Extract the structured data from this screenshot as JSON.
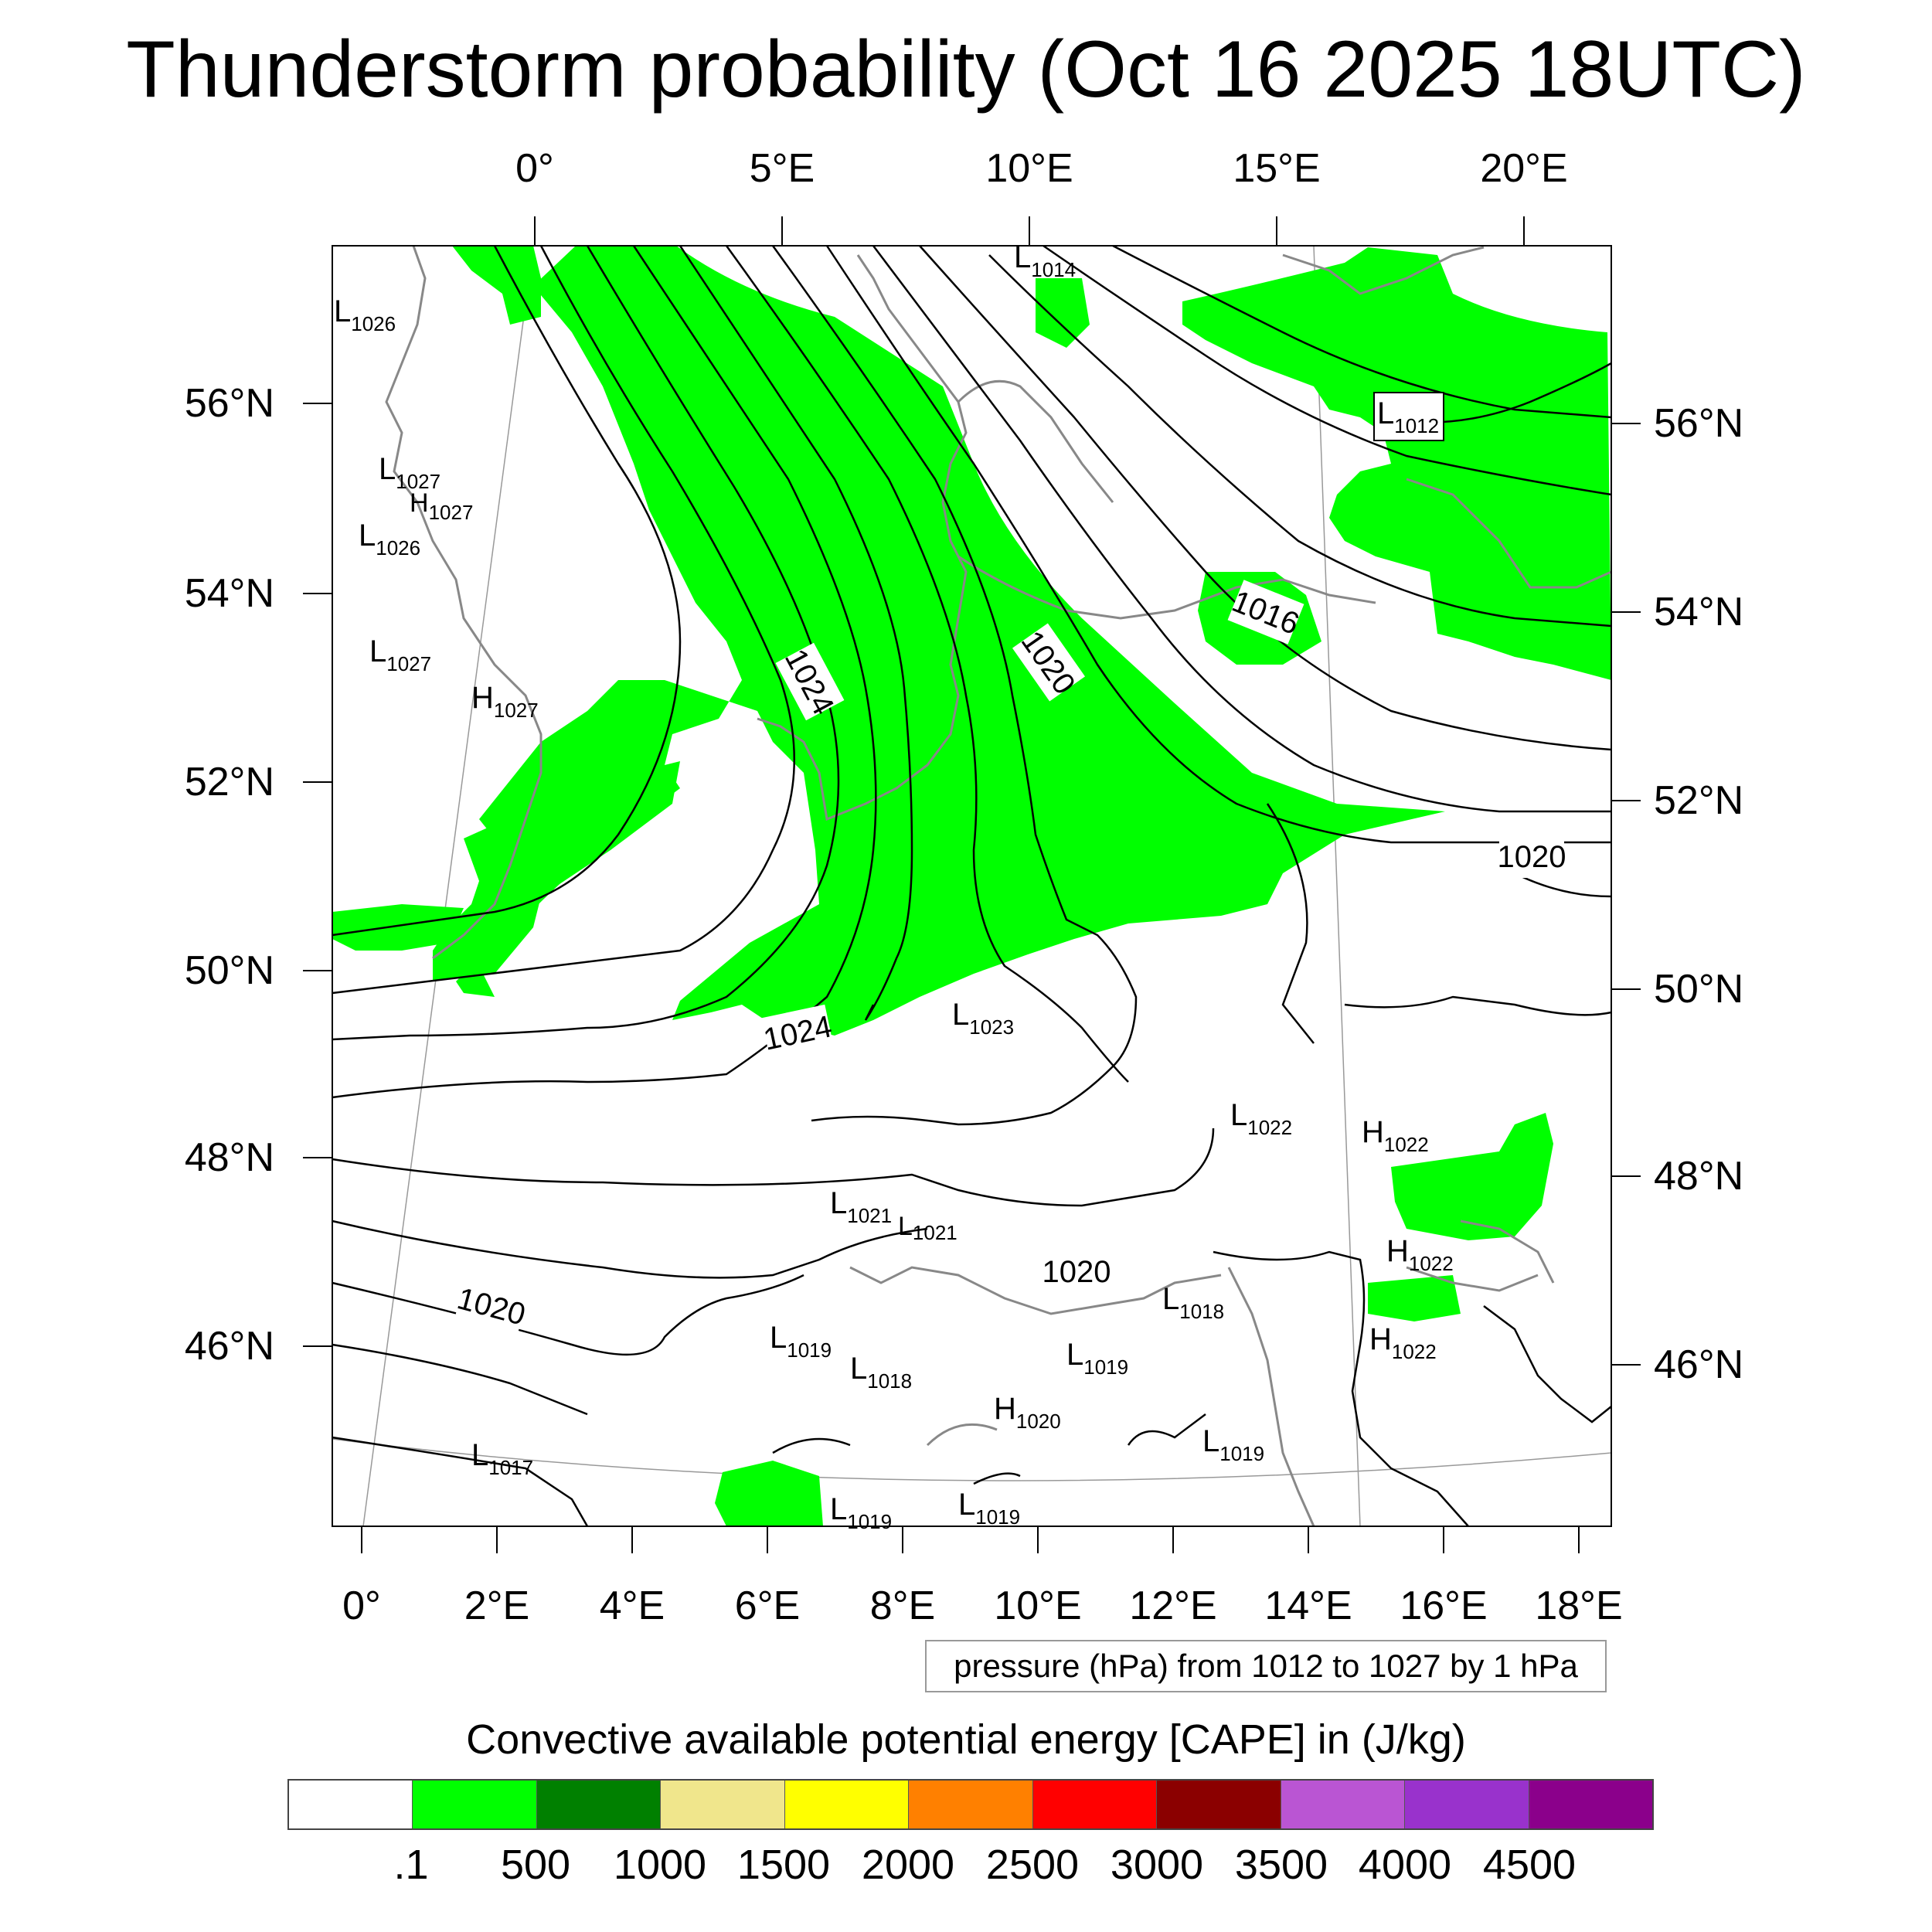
{
  "title": "Thunderstorm probability (Oct 16 2025 18UTC)",
  "top_lon_labels": [
    "0°",
    "5°E",
    "10°E",
    "15°E",
    "20°E"
  ],
  "bottom_lon_labels": [
    "0°",
    "2°E",
    "4°E",
    "6°E",
    "8°E",
    "10°E",
    "12°E",
    "14°E",
    "16°E",
    "18°E"
  ],
  "left_lat_labels": [
    "56°N",
    "54°N",
    "52°N",
    "50°N",
    "48°N",
    "46°N"
  ],
  "right_lat_labels": [
    "56°N",
    "54°N",
    "52°N",
    "50°N",
    "48°N",
    "46°N"
  ],
  "contour_info": "pressure (hPa) from 1012 to 1027 by 1 hPa",
  "colorbar": {
    "title": "Convective available potential energy [CAPE] in (J/kg)",
    "labels": [
      ".1",
      "500",
      "1000",
      "1500",
      "2000",
      "2500",
      "3000",
      "3500",
      "4000",
      "4500"
    ],
    "colors": [
      "#ffffff",
      "#00ff00",
      "#008000",
      "#f0e68c",
      "#ffff00",
      "#ff8000",
      "#ff0000",
      "#8b0000",
      "#ba55d3",
      "#9932cc",
      "#8b008b"
    ]
  },
  "isobar_labels": [
    "1024",
    "1020",
    "1016",
    "1020",
    "1024",
    "1020",
    "1020"
  ],
  "centers": [
    {
      "type": "L",
      "value": "1014"
    },
    {
      "type": "L",
      "value": "1026"
    },
    {
      "type": "L",
      "value": "1027"
    },
    {
      "type": "H",
      "value": "1027"
    },
    {
      "type": "L",
      "value": "1026"
    },
    {
      "type": "L",
      "value": "1027"
    },
    {
      "type": "H",
      "value": "1027"
    },
    {
      "type": "L",
      "value": "1012"
    },
    {
      "type": "L",
      "value": "1023"
    },
    {
      "type": "L",
      "value": "1022"
    },
    {
      "type": "H",
      "value": "1022"
    },
    {
      "type": "H",
      "value": "1022"
    },
    {
      "type": "H",
      "value": "1022"
    },
    {
      "type": "L",
      "value": "1021"
    },
    {
      "type": "L",
      "value": "1021"
    },
    {
      "type": "L",
      "value": "1018"
    },
    {
      "type": "L",
      "value": "1019"
    },
    {
      "type": "L",
      "value": "1018"
    },
    {
      "type": "L",
      "value": "1019"
    },
    {
      "type": "H",
      "value": "1020"
    },
    {
      "type": "L",
      "value": "1019"
    },
    {
      "type": "L",
      "value": "1017"
    },
    {
      "type": "L",
      "value": "1019"
    },
    {
      "type": "L",
      "value": "1019"
    }
  ]
}
